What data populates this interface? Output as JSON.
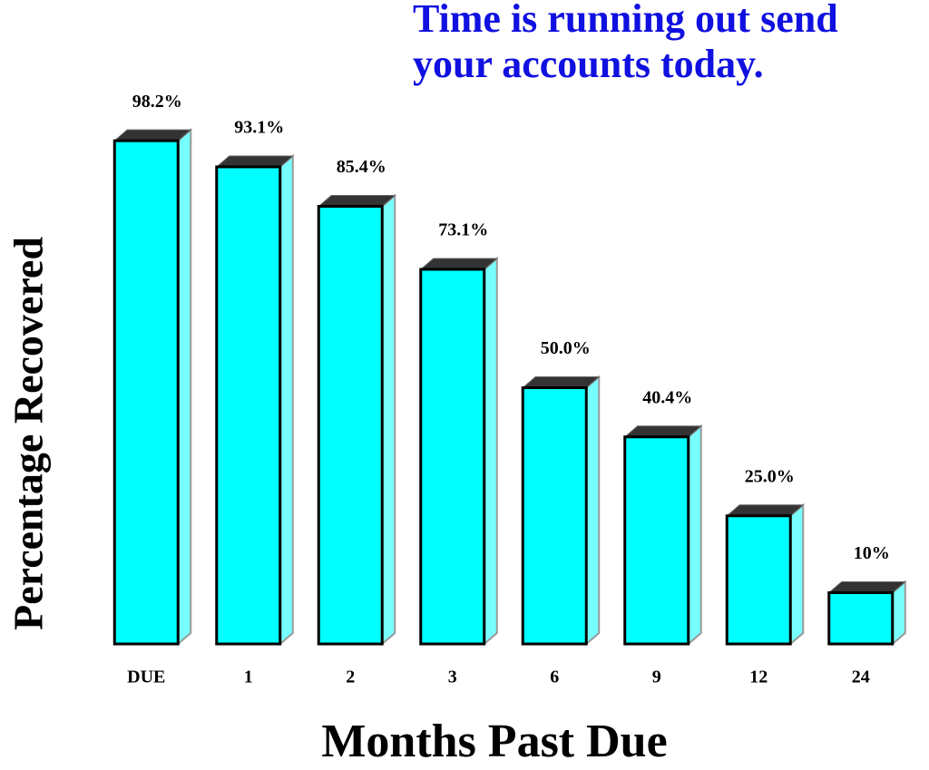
{
  "chart_data": {
    "type": "bar",
    "title": "Time is running out send your accounts today.",
    "x_label": "Months Past Due",
    "y_label": "Percentage Recovered",
    "categories": [
      "DUE",
      "1",
      "2",
      "3",
      "6",
      "9",
      "12",
      "24"
    ],
    "values": [
      98.2,
      93.1,
      85.4,
      73.1,
      50.0,
      40.4,
      25.0,
      10
    ],
    "value_labels": [
      "98.2%",
      "93.1%",
      "85.4%",
      "73.1%",
      "50.0%",
      "40.4%",
      "25.0%",
      "10%"
    ],
    "color": "#00ffff"
  }
}
